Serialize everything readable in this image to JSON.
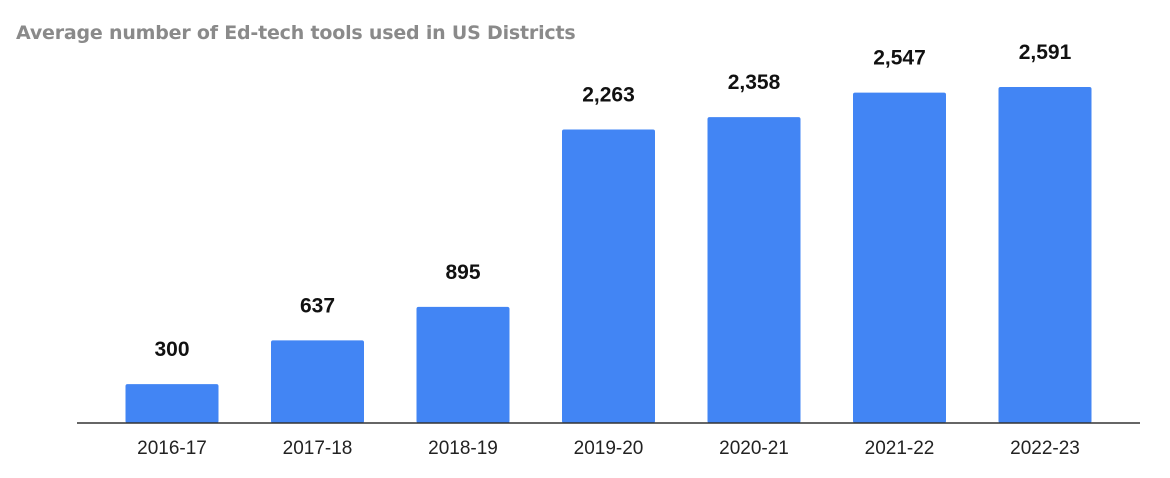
{
  "chart_data": {
    "type": "bar",
    "title": "Average number of Ed-tech tools used in US Districts",
    "categories": [
      "2016-17",
      "2017-18",
      "2018-19",
      "2019-20",
      "2020-21",
      "2021-22",
      "2022-23"
    ],
    "values": [
      300,
      637,
      895,
      2263,
      2358,
      2547,
      2591
    ],
    "value_labels": [
      "300",
      "637",
      "895",
      "2,263",
      "2,358",
      "2,547",
      "2,591"
    ],
    "xlabel": "",
    "ylabel": "",
    "ylim": [
      0,
      3000
    ],
    "grid": false,
    "legend": "none",
    "colors": {
      "bar": "#4285f4",
      "title": "#8a8a8a"
    }
  }
}
